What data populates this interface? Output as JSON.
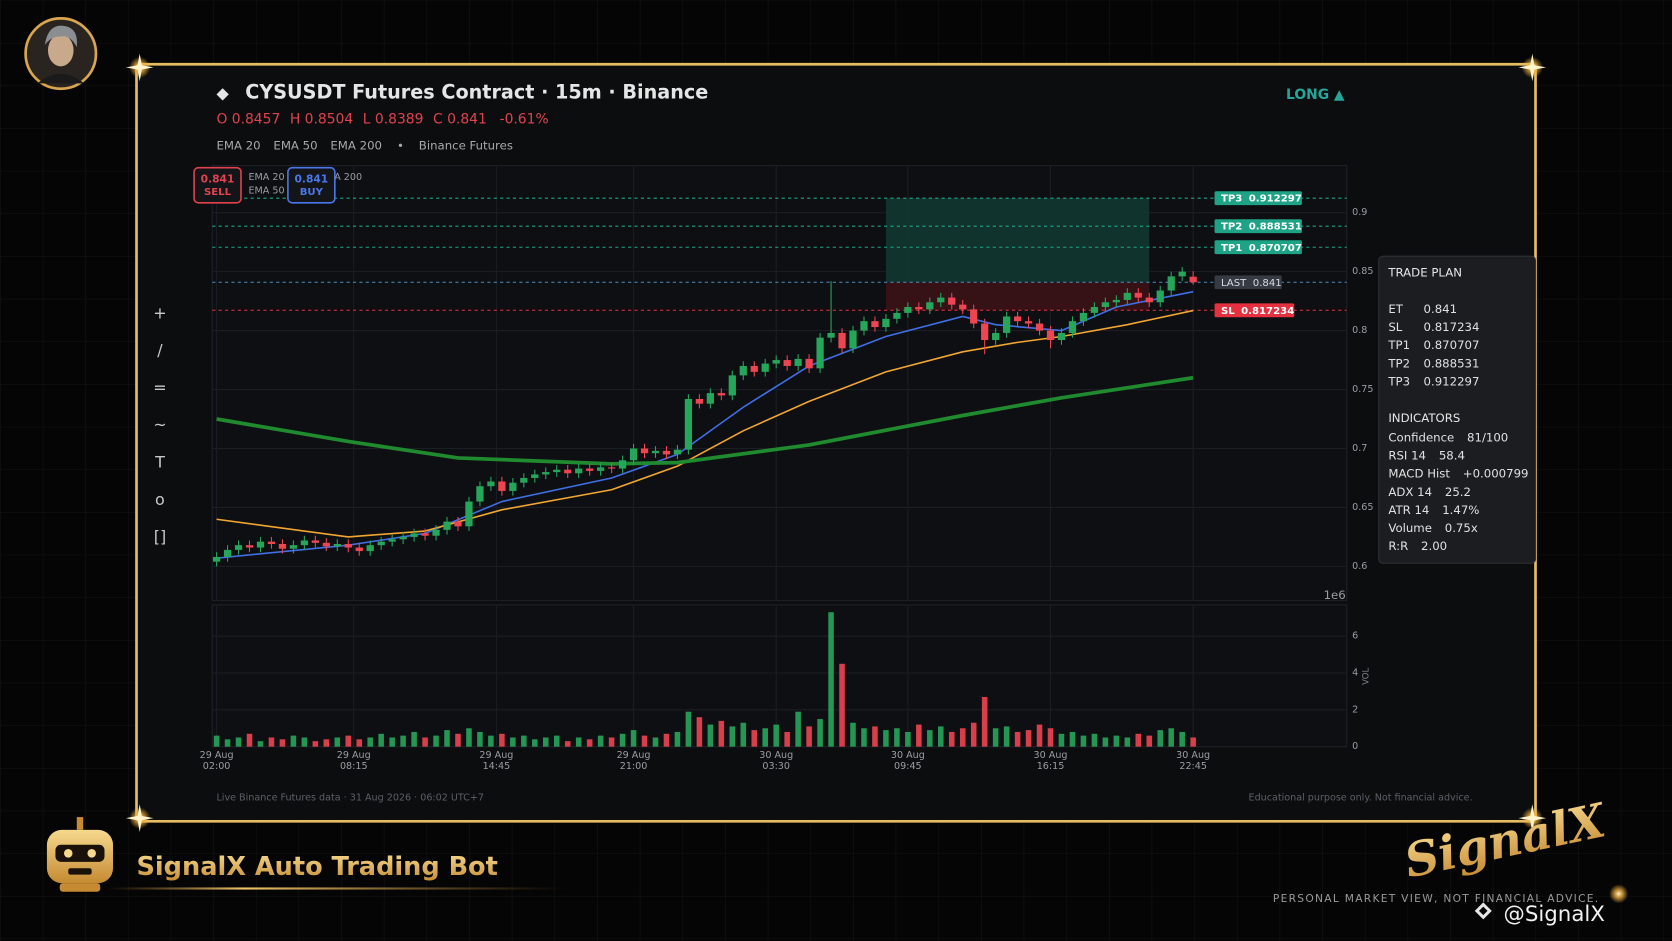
{
  "header": {
    "title": "CYSUSDT Futures Contract · 15m · Binance",
    "direction": "LONG ▲",
    "ohlc": [
      "O 0.8457",
      "H 0.8504",
      "L 0.8389",
      "C 0.841",
      "-0.61%"
    ],
    "indicators": [
      "EMA 20",
      "EMA 50",
      "EMA 200",
      "•",
      "Binance Futures"
    ]
  },
  "toolbar": [
    "+",
    "/",
    "=",
    "~",
    "T",
    "o",
    "[]"
  ],
  "chart_data": [
    {
      "type": "candlestick",
      "open": [
        0.604,
        0.608,
        0.614,
        0.618,
        0.616,
        0.621,
        0.619,
        0.615,
        0.618,
        0.622,
        0.62,
        0.617,
        0.619,
        0.616,
        0.613,
        0.618,
        0.621,
        0.623,
        0.625,
        0.628,
        0.626,
        0.631,
        0.638,
        0.634,
        0.655,
        0.668,
        0.672,
        0.664,
        0.671,
        0.675,
        0.678,
        0.68,
        0.682,
        0.679,
        0.683,
        0.681,
        0.684,
        0.683,
        0.69,
        0.7,
        0.696,
        0.698,
        0.695,
        0.699,
        0.742,
        0.738,
        0.747,
        0.745,
        0.762,
        0.77,
        0.765,
        0.772,
        0.775,
        0.77,
        0.776,
        0.768,
        0.794,
        0.798,
        0.785,
        0.8,
        0.808,
        0.803,
        0.81,
        0.815,
        0.82,
        0.818,
        0.824,
        0.828,
        0.822,
        0.818,
        0.806,
        0.792,
        0.798,
        0.812,
        0.808,
        0.806,
        0.8,
        0.792,
        0.798,
        0.808,
        0.815,
        0.82,
        0.824,
        0.826,
        0.832,
        0.828,
        0.824,
        0.834,
        0.846,
        0.8457
      ],
      "high": [
        0.612,
        0.618,
        0.622,
        0.622,
        0.625,
        0.625,
        0.623,
        0.622,
        0.626,
        0.626,
        0.624,
        0.623,
        0.623,
        0.62,
        0.622,
        0.625,
        0.627,
        0.629,
        0.632,
        0.632,
        0.635,
        0.642,
        0.642,
        0.659,
        0.672,
        0.676,
        0.676,
        0.675,
        0.679,
        0.682,
        0.684,
        0.686,
        0.686,
        0.687,
        0.687,
        0.688,
        0.688,
        0.694,
        0.704,
        0.704,
        0.702,
        0.702,
        0.703,
        0.746,
        0.746,
        0.751,
        0.751,
        0.766,
        0.774,
        0.774,
        0.776,
        0.779,
        0.779,
        0.78,
        0.78,
        0.798,
        0.842,
        0.802,
        0.804,
        0.812,
        0.812,
        0.814,
        0.819,
        0.824,
        0.824,
        0.828,
        0.832,
        0.832,
        0.826,
        0.822,
        0.81,
        0.802,
        0.816,
        0.816,
        0.812,
        0.81,
        0.804,
        0.802,
        0.812,
        0.819,
        0.824,
        0.828,
        0.83,
        0.836,
        0.836,
        0.832,
        0.838,
        0.85,
        0.854,
        0.8504
      ],
      "low": [
        0.6,
        0.604,
        0.61,
        0.612,
        0.612,
        0.615,
        0.611,
        0.611,
        0.614,
        0.616,
        0.613,
        0.613,
        0.612,
        0.609,
        0.609,
        0.614,
        0.617,
        0.619,
        0.621,
        0.622,
        0.622,
        0.627,
        0.63,
        0.63,
        0.651,
        0.664,
        0.66,
        0.66,
        0.667,
        0.671,
        0.674,
        0.676,
        0.675,
        0.675,
        0.677,
        0.677,
        0.679,
        0.679,
        0.686,
        0.692,
        0.692,
        0.691,
        0.691,
        0.695,
        0.734,
        0.734,
        0.741,
        0.741,
        0.758,
        0.761,
        0.761,
        0.768,
        0.766,
        0.766,
        0.764,
        0.764,
        0.79,
        0.781,
        0.781,
        0.796,
        0.799,
        0.799,
        0.806,
        0.811,
        0.814,
        0.814,
        0.82,
        0.818,
        0.814,
        0.802,
        0.78,
        0.788,
        0.794,
        0.804,
        0.802,
        0.796,
        0.785,
        0.788,
        0.794,
        0.804,
        0.811,
        0.816,
        0.82,
        0.822,
        0.824,
        0.82,
        0.82,
        0.83,
        0.842,
        0.8389
      ],
      "close": [
        0.608,
        0.614,
        0.618,
        0.616,
        0.621,
        0.619,
        0.615,
        0.618,
        0.622,
        0.62,
        0.617,
        0.619,
        0.616,
        0.613,
        0.618,
        0.621,
        0.623,
        0.625,
        0.628,
        0.626,
        0.631,
        0.638,
        0.634,
        0.655,
        0.668,
        0.672,
        0.664,
        0.671,
        0.675,
        0.678,
        0.68,
        0.682,
        0.679,
        0.683,
        0.681,
        0.684,
        0.683,
        0.69,
        0.7,
        0.696,
        0.698,
        0.695,
        0.699,
        0.742,
        0.738,
        0.747,
        0.745,
        0.762,
        0.77,
        0.765,
        0.772,
        0.775,
        0.77,
        0.776,
        0.768,
        0.794,
        0.798,
        0.785,
        0.8,
        0.808,
        0.803,
        0.81,
        0.815,
        0.82,
        0.818,
        0.824,
        0.828,
        0.822,
        0.818,
        0.806,
        0.792,
        0.798,
        0.812,
        0.808,
        0.806,
        0.8,
        0.792,
        0.798,
        0.808,
        0.815,
        0.82,
        0.824,
        0.826,
        0.832,
        0.828,
        0.824,
        0.834,
        0.846,
        0.85,
        0.841
      ],
      "up_color": "#26a65b",
      "down_color": "#ef4452",
      "xlim": [
        -0.4,
        103
      ],
      "ylim": [
        0.571,
        0.94
      ],
      "yticks": [
        0.6,
        0.65,
        0.7,
        0.75,
        0.8,
        0.85,
        0.9
      ],
      "grid": true,
      "series": [
        {
          "name": "EMA 20",
          "color": "#3f6fe6",
          "x": [
            0,
            12,
            19,
            26,
            36,
            42,
            48,
            54,
            61,
            68,
            71,
            77,
            82,
            89
          ],
          "values": [
            0.607,
            0.618,
            0.628,
            0.655,
            0.675,
            0.695,
            0.735,
            0.77,
            0.795,
            0.812,
            0.805,
            0.8,
            0.82,
            0.833
          ]
        },
        {
          "name": "EMA 50",
          "color": "#f2a632",
          "x": [
            0,
            12,
            19,
            26,
            36,
            42,
            48,
            54,
            61,
            68,
            73,
            77,
            83,
            89
          ],
          "values": [
            0.64,
            0.625,
            0.63,
            0.648,
            0.665,
            0.685,
            0.715,
            0.74,
            0.765,
            0.782,
            0.79,
            0.795,
            0.805,
            0.817
          ]
        },
        {
          "name": "EMA 200",
          "color": "#1f8a2e",
          "x": [
            0,
            12,
            22,
            36,
            42,
            54,
            68,
            77,
            89
          ],
          "values": [
            0.725,
            0.706,
            0.692,
            0.687,
            0.688,
            0.703,
            0.728,
            0.743,
            0.76
          ]
        }
      ],
      "levels": [
        {
          "name": "TP3",
          "value": 0.912297,
          "color": "#1fa386"
        },
        {
          "name": "TP2",
          "value": 0.888531,
          "color": "#1fa386"
        },
        {
          "name": "TP1",
          "value": 0.870707,
          "color": "#1fa386"
        },
        {
          "name": "LAST",
          "value": 0.841,
          "color": "#4b8fc4"
        },
        {
          "name": "SL",
          "value": 0.817234,
          "color": "#e5303f"
        }
      ],
      "zones": [
        {
          "x": [
            61,
            85
          ],
          "from": 0.841,
          "to": 0.912297,
          "color": "#123a33"
        },
        {
          "x": [
            61,
            85
          ],
          "from": 0.817234,
          "to": 0.841,
          "color": "#3d1319"
        }
      ],
      "badges": [
        {
          "value": "0.841",
          "label": "SELL",
          "color": "#e0424e"
        },
        {
          "value": "0.841",
          "label": "BUY",
          "color": "#4a78ea"
        }
      ]
    },
    {
      "type": "bar",
      "values": [
        0.6,
        0.4,
        0.5,
        0.7,
        0.3,
        0.5,
        0.4,
        0.6,
        0.5,
        0.3,
        0.4,
        0.5,
        0.6,
        0.4,
        0.5,
        0.7,
        0.5,
        0.6,
        0.8,
        0.5,
        0.6,
        0.9,
        0.7,
        1.0,
        0.8,
        0.6,
        0.7,
        0.5,
        0.6,
        0.4,
        0.5,
        0.6,
        0.3,
        0.5,
        0.4,
        0.6,
        0.5,
        0.7,
        0.9,
        0.6,
        0.5,
        0.7,
        0.8,
        1.9,
        1.6,
        1.2,
        1.4,
        1.1,
        1.3,
        0.9,
        1.0,
        1.2,
        0.8,
        1.9,
        1.1,
        1.5,
        7.3,
        4.5,
        1.3,
        1.0,
        1.1,
        0.9,
        1.0,
        0.8,
        1.2,
        0.9,
        1.1,
        0.8,
        1.0,
        1.3,
        2.7,
        1.0,
        1.1,
        0.8,
        0.9,
        1.2,
        1.0,
        0.7,
        0.8,
        0.6,
        0.7,
        0.5,
        0.6,
        0.5,
        0.7,
        0.6,
        0.9,
        1.0,
        0.8,
        0.5
      ],
      "xlim": [
        -0.4,
        103
      ],
      "ylim": [
        0,
        7.7
      ],
      "yticks": [
        0,
        2,
        4,
        6
      ],
      "ylabel": "VOL",
      "scale_label": "1e6",
      "grid": true,
      "xticks": [
        {
          "value": 0,
          "label": "29 Aug\n02:00"
        },
        {
          "value": 12.5,
          "label": "29 Aug\n08:15"
        },
        {
          "value": 25.5,
          "label": "29 Aug\n14:45"
        },
        {
          "value": 38,
          "label": "29 Aug\n21:00"
        },
        {
          "value": 51,
          "label": "30 Aug\n03:30"
        },
        {
          "value": 63,
          "label": "30 Aug\n09:45"
        },
        {
          "value": 76,
          "label": "30 Aug\n16:15"
        },
        {
          "value": 89,
          "label": "30 Aug\n22:45"
        }
      ]
    }
  ],
  "trade_plan": {
    "title": "TRADE PLAN",
    "rows": [
      [
        "ET",
        "0.841"
      ],
      [
        "SL",
        "0.817234"
      ],
      [
        "TP1",
        "0.870707"
      ],
      [
        "TP2",
        "0.888531"
      ],
      [
        "TP3",
        "0.912297"
      ]
    ],
    "indicators_title": "INDICATORS",
    "indicators": [
      [
        "Confidence",
        "81/100"
      ],
      [
        "RSI 14",
        "58.4"
      ],
      [
        "MACD Hist",
        "+0.000799"
      ],
      [
        "ADX 14",
        "25.2"
      ],
      [
        "ATR 14",
        "1.47%"
      ],
      [
        "Volume",
        "0.75x"
      ],
      [
        "R:R",
        "2.00"
      ]
    ]
  },
  "footer": {
    "left": "Live Binance Futures data  ·  31 Aug 2026 · 06:02 UTC+7",
    "right": "Educational purpose only. Not financial advice."
  },
  "branding": {
    "bot": "SignalX Auto Trading Bot",
    "logo": "SignalX",
    "tagline": "PERSONAL MARKET VIEW, NOT FINANCIAL ADVICE.",
    "handle": "@SignalX"
  }
}
